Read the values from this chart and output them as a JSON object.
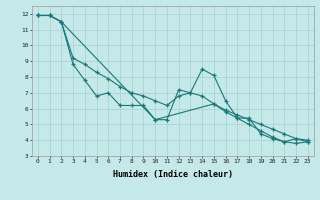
{
  "xlabel": "Humidex (Indice chaleur)",
  "bg_color": "#c5e8e8",
  "grid_color": "#aad4d4",
  "line_color": "#1a7878",
  "line1_x": [
    0,
    1,
    2,
    3,
    4,
    5,
    6,
    7,
    8,
    9,
    10,
    11,
    12,
    13,
    14,
    15,
    16,
    17,
    18,
    19,
    20,
    21,
    22,
    23
  ],
  "line1_y": [
    11.9,
    11.9,
    11.5,
    8.8,
    7.8,
    6.8,
    7.0,
    6.2,
    6.2,
    6.2,
    5.3,
    5.3,
    7.2,
    7.0,
    8.5,
    8.1,
    6.5,
    5.4,
    5.4,
    4.4,
    4.1,
    3.9,
    4.1,
    4.0
  ],
  "line2_x": [
    0,
    1,
    2,
    3,
    4,
    5,
    6,
    7,
    8,
    9,
    10,
    11,
    12,
    13,
    14,
    15,
    16,
    17,
    18,
    19,
    20,
    21,
    22,
    23
  ],
  "line2_y": [
    11.9,
    11.9,
    11.5,
    9.2,
    8.8,
    8.3,
    7.9,
    7.4,
    7.0,
    6.8,
    6.5,
    6.2,
    6.8,
    7.0,
    6.8,
    6.3,
    5.9,
    5.6,
    5.3,
    5.0,
    4.7,
    4.4,
    4.1,
    3.9
  ],
  "line3_x": [
    0,
    1,
    2,
    10,
    15,
    16,
    17,
    18,
    19,
    20,
    21,
    22,
    23
  ],
  "line3_y": [
    11.9,
    11.9,
    11.5,
    5.3,
    6.3,
    5.8,
    5.4,
    5.0,
    4.6,
    4.2,
    3.9,
    3.8,
    3.9
  ],
  "ylim": [
    3,
    12.5
  ],
  "xlim_min": -0.5,
  "xlim_max": 23.5,
  "yticks": [
    3,
    4,
    5,
    6,
    7,
    8,
    9,
    10,
    11,
    12
  ],
  "xticks": [
    0,
    1,
    2,
    3,
    4,
    5,
    6,
    7,
    8,
    9,
    10,
    11,
    12,
    13,
    14,
    15,
    16,
    17,
    18,
    19,
    20,
    21,
    22,
    23
  ]
}
